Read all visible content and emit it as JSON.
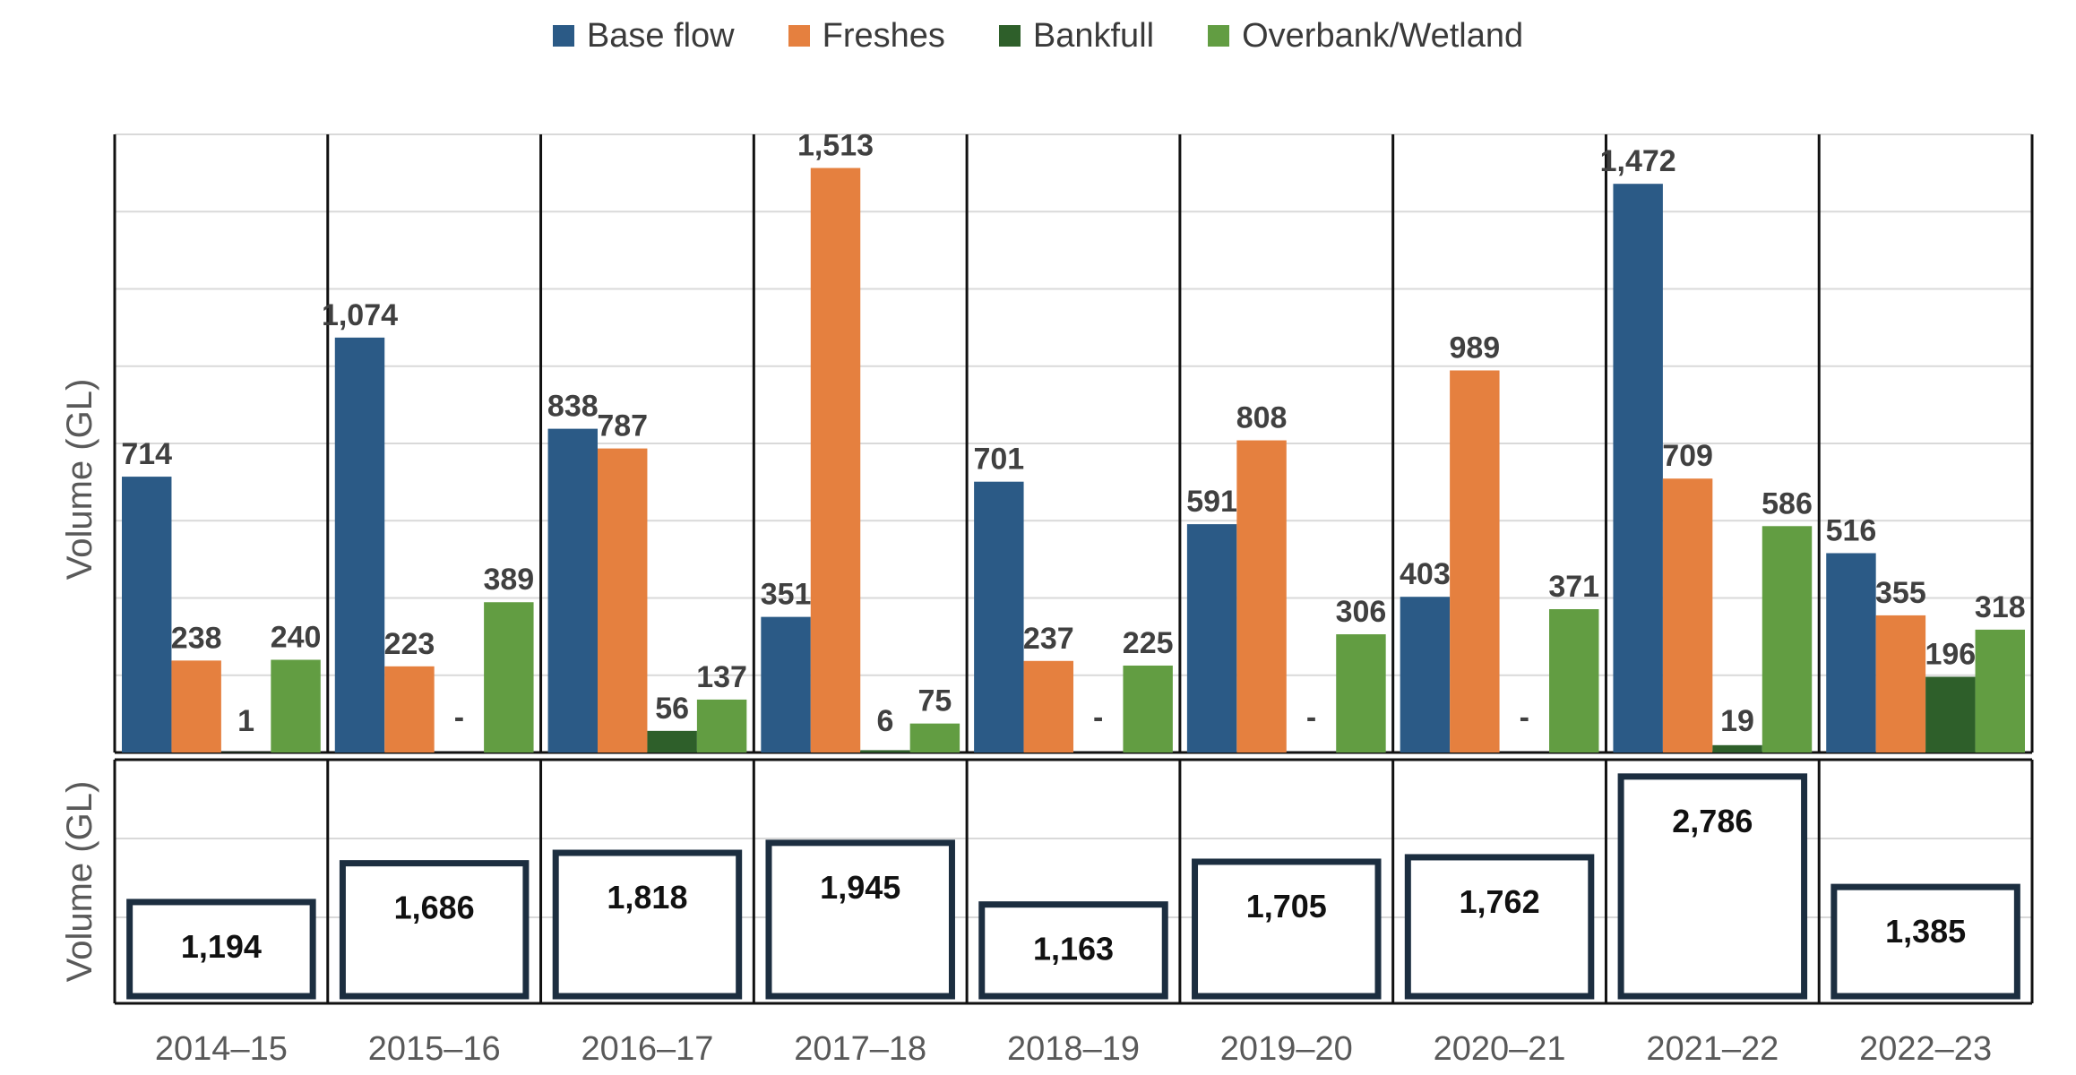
{
  "chart_data": [
    {
      "type": "bar",
      "ylabel": "Volume (GL)",
      "categories": [
        "2014–15",
        "2015–16",
        "2016–17",
        "2017–18",
        "2018–19",
        "2019–20",
        "2020–21",
        "2021–22",
        "2022–23"
      ],
      "ylim": [
        0,
        1600
      ],
      "grid": true,
      "legend_placement": "top",
      "series": [
        {
          "name": "Base flow",
          "color": "#2b5a86",
          "values": [
            714,
            1074,
            838,
            351,
            701,
            591,
            403,
            1472,
            516
          ],
          "labels": [
            "714",
            "1,074",
            "838",
            "351",
            "701",
            "591",
            "403",
            "1,472",
            "516"
          ]
        },
        {
          "name": "Freshes",
          "color": "#e5803f",
          "values": [
            238,
            223,
            787,
            1513,
            237,
            808,
            989,
            709,
            355
          ],
          "labels": [
            "238",
            "223",
            "787",
            "1,513",
            "237",
            "808",
            "989",
            "709",
            "355"
          ]
        },
        {
          "name": "Bankfull",
          "color": "#2e5f2a",
          "values": [
            1,
            0,
            56,
            6,
            0,
            0,
            0,
            19,
            196
          ],
          "labels": [
            "1",
            "-",
            "56",
            "6",
            "-",
            "-",
            "-",
            "19",
            "196"
          ]
        },
        {
          "name": "Overbank/Wetland",
          "color": "#629d42",
          "values": [
            240,
            389,
            137,
            75,
            225,
            306,
            371,
            586,
            318
          ],
          "labels": [
            "240",
            "389",
            "137",
            "75",
            "225",
            "306",
            "371",
            "586",
            "318"
          ]
        }
      ]
    },
    {
      "type": "bar",
      "ylabel": "Volume (GL)",
      "categories": [
        "2014–15",
        "2015–16",
        "2016–17",
        "2017–18",
        "2018–19",
        "2019–20",
        "2020–21",
        "2021–22",
        "2022–23"
      ],
      "ylim": [
        0,
        3000
      ],
      "grid": true,
      "bar_style": "outlined",
      "bar_edge_color": "#1c2e40",
      "values": [
        1194,
        1686,
        1818,
        1945,
        1163,
        1705,
        1762,
        2786,
        1385
      ],
      "labels": [
        "1,194",
        "1,686",
        "1,818",
        "1,945",
        "1,163",
        "1,705",
        "1,762",
        "2,786",
        "1,385"
      ]
    }
  ]
}
